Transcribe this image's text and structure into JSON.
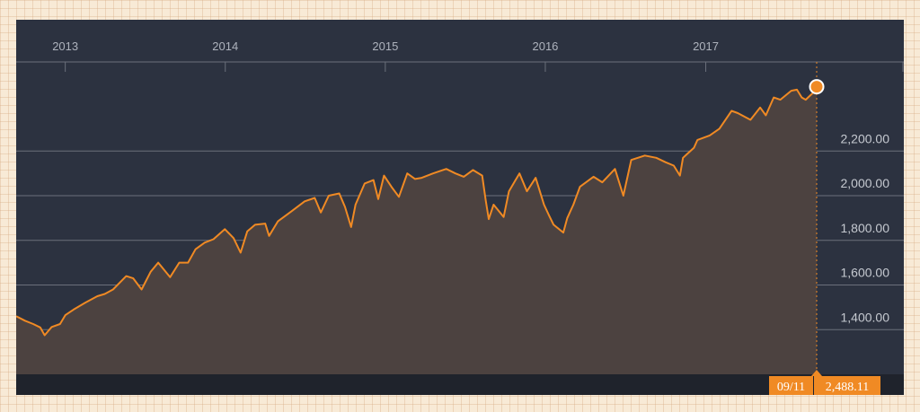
{
  "colors": {
    "plot_bg": "#2c3240",
    "line": "#f08a24",
    "fill": "#4c4240",
    "grid": "#6b707b",
    "footer_bar": "#1f232c",
    "callout_bg": "#f08a24",
    "accent_dot_border": "#ffffff"
  },
  "chart_data": {
    "type": "area",
    "title": "",
    "xlabel": "",
    "ylabel": "",
    "x_ticks": [
      "2013",
      "2014",
      "2015",
      "2016",
      "2017"
    ],
    "y_ticks": [
      "1,400.00",
      "1,600.00",
      "1,800.00",
      "2,000.00",
      "2,200.00"
    ],
    "y_tick_values": [
      1400,
      1600,
      1800,
      2000,
      2200
    ],
    "ylim": [
      1200,
      2555
    ],
    "xlim": [
      "2012-09-11",
      "2017-09-11"
    ],
    "grid": "horizontal",
    "last_point": {
      "date_label": "09/11",
      "value_label": "2,488.11",
      "x": "2017-09-11",
      "y": 2488.11
    },
    "series": [
      {
        "x": [
          "2012-09-11",
          "2012-10-01",
          "2012-10-20",
          "2012-11-05",
          "2012-11-15",
          "2012-12-01",
          "2012-12-20",
          "2013-01-01",
          "2013-01-20",
          "2013-02-15",
          "2013-03-15",
          "2013-04-01",
          "2013-04-20",
          "2013-05-20",
          "2013-06-05",
          "2013-06-24",
          "2013-07-15",
          "2013-08-01",
          "2013-08-28",
          "2013-09-18",
          "2013-10-08",
          "2013-10-25",
          "2013-11-15",
          "2013-12-05",
          "2013-12-31",
          "2014-01-20",
          "2014-02-05",
          "2014-02-20",
          "2014-03-10",
          "2014-04-02",
          "2014-04-11",
          "2014-05-01",
          "2014-06-01",
          "2014-07-01",
          "2014-07-24",
          "2014-08-07",
          "2014-08-25",
          "2014-09-18",
          "2014-10-01",
          "2014-10-15",
          "2014-10-25",
          "2014-11-15",
          "2014-12-05",
          "2014-12-16",
          "2014-12-29",
          "2015-01-15",
          "2015-02-01",
          "2015-02-20",
          "2015-03-10",
          "2015-03-25",
          "2015-04-20",
          "2015-05-20",
          "2015-06-10",
          "2015-06-29",
          "2015-07-20",
          "2015-08-10",
          "2015-08-18",
          "2015-08-25",
          "2015-09-05",
          "2015-09-28",
          "2015-10-10",
          "2015-10-25",
          "2015-11-03",
          "2015-11-20",
          "2015-12-10",
          "2015-12-29",
          "2016-01-10",
          "2016-01-20",
          "2016-02-11",
          "2016-02-20",
          "2016-03-05",
          "2016-03-20",
          "2016-04-20",
          "2016-05-10",
          "2016-06-08",
          "2016-06-27",
          "2016-07-15",
          "2016-08-15",
          "2016-09-10",
          "2016-10-01",
          "2016-10-20",
          "2016-11-03",
          "2016-11-10",
          "2016-12-05",
          "2016-12-13",
          "2017-01-10",
          "2017-02-01",
          "2017-03-01",
          "2017-03-15",
          "2017-04-13",
          "2017-05-05",
          "2017-05-18",
          "2017-06-05",
          "2017-06-20",
          "2017-07-15",
          "2017-07-28",
          "2017-08-08",
          "2017-08-17",
          "2017-08-25",
          "2017-09-05",
          "2017-09-11"
        ],
        "values": [
          1460,
          1440,
          1425,
          1410,
          1375,
          1412,
          1425,
          1465,
          1490,
          1520,
          1550,
          1560,
          1580,
          1640,
          1630,
          1580,
          1660,
          1700,
          1635,
          1700,
          1700,
          1760,
          1790,
          1805,
          1850,
          1810,
          1745,
          1840,
          1870,
          1875,
          1820,
          1885,
          1930,
          1975,
          1990,
          1925,
          2000,
          2010,
          1950,
          1860,
          1960,
          2055,
          2070,
          1985,
          2090,
          2040,
          1995,
          2100,
          2075,
          2080,
          2100,
          2120,
          2100,
          2085,
          2115,
          2090,
          1980,
          1895,
          1960,
          1905,
          2020,
          2070,
          2100,
          2020,
          2080,
          1960,
          1910,
          1870,
          1835,
          1900,
          1960,
          2040,
          2085,
          2060,
          2120,
          2000,
          2160,
          2180,
          2170,
          2150,
          2135,
          2090,
          2170,
          2215,
          2250,
          2270,
          2300,
          2380,
          2370,
          2340,
          2395,
          2360,
          2440,
          2430,
          2470,
          2475,
          2440,
          2430,
          2445,
          2465,
          2488.11
        ]
      }
    ]
  }
}
